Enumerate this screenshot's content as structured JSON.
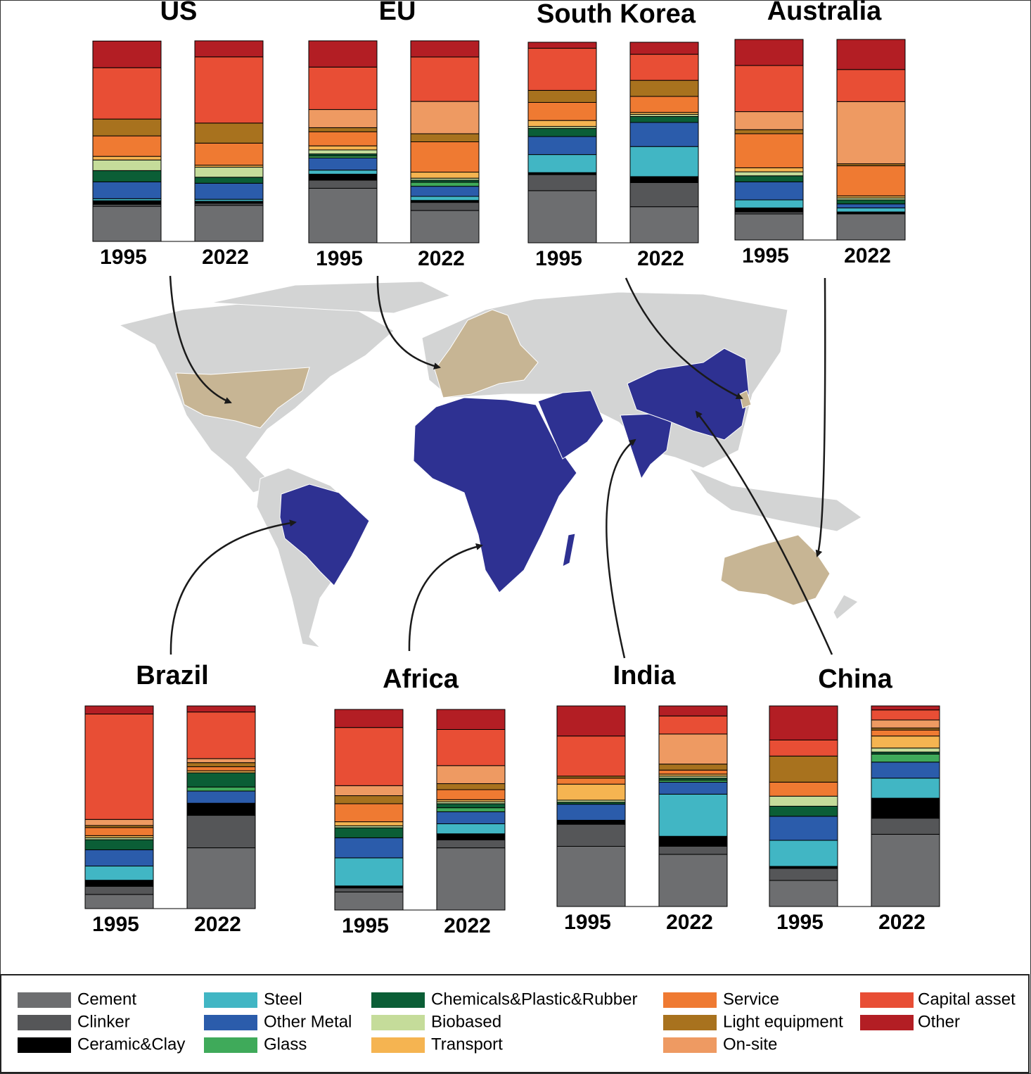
{
  "chart_data": [
    {
      "type": "bar",
      "stacked": true,
      "title": "US",
      "categories": [
        "1995",
        "2022"
      ],
      "ylim": [
        0,
        100
      ],
      "series": [
        {
          "values": [
            17.5,
            18
          ]
        },
        {
          "values": [
            1,
            1
          ]
        },
        {
          "values": [
            1.8,
            1
          ]
        },
        {
          "values": [
            1,
            1
          ]
        },
        {
          "values": [
            8.4,
            8
          ]
        },
        {
          "values": [
            0,
            0
          ]
        },
        {
          "values": [
            5.6,
            3
          ]
        },
        {
          "values": [
            5.3,
            5
          ]
        },
        {
          "values": [
            1.8,
            1
          ]
        },
        {
          "values": [
            10.2,
            11
          ]
        },
        {
          "values": [
            8.4,
            10
          ]
        },
        {
          "values": [
            0,
            0
          ]
        },
        {
          "values": [
            25.6,
            33
          ]
        },
        {
          "values": [
            13.3,
            8
          ]
        }
      ]
    },
    {
      "type": "bar",
      "stacked": true,
      "title": "EU",
      "categories": [
        "1995",
        "2022"
      ],
      "ylim": [
        0,
        100
      ],
      "series": [
        {
          "values": [
            27,
            16
          ]
        },
        {
          "values": [
            4,
            4
          ]
        },
        {
          "values": [
            3,
            1
          ]
        },
        {
          "values": [
            2,
            2
          ]
        },
        {
          "values": [
            6,
            5
          ]
        },
        {
          "values": [
            1,
            2
          ]
        },
        {
          "values": [
            1,
            1
          ]
        },
        {
          "values": [
            2,
            1
          ]
        },
        {
          "values": [
            2,
            3
          ]
        },
        {
          "values": [
            7,
            15
          ]
        },
        {
          "values": [
            2,
            4
          ]
        },
        {
          "values": [
            9,
            16
          ]
        },
        {
          "values": [
            21,
            22
          ]
        },
        {
          "values": [
            13,
            8
          ]
        }
      ]
    },
    {
      "type": "bar",
      "stacked": true,
      "title": "South Korea",
      "categories": [
        "1995",
        "2022"
      ],
      "ylim": [
        0,
        100
      ],
      "series": [
        {
          "values": [
            26,
            18
          ]
        },
        {
          "values": [
            8,
            12
          ]
        },
        {
          "values": [
            1,
            3
          ]
        },
        {
          "values": [
            9,
            15
          ]
        },
        {
          "values": [
            9,
            12
          ]
        },
        {
          "values": [
            0,
            0
          ]
        },
        {
          "values": [
            4,
            3
          ]
        },
        {
          "values": [
            1,
            1
          ]
        },
        {
          "values": [
            3,
            1
          ]
        },
        {
          "values": [
            9,
            8
          ]
        },
        {
          "values": [
            6,
            8
          ]
        },
        {
          "values": [
            0,
            0
          ]
        },
        {
          "values": [
            21,
            13
          ]
        },
        {
          "values": [
            3,
            6
          ]
        }
      ]
    },
    {
      "type": "bar",
      "stacked": true,
      "title": "Australia",
      "categories": [
        "1995",
        "2022"
      ],
      "ylim": [
        0,
        100
      ],
      "series": [
        {
          "values": [
            13,
            13
          ]
        },
        {
          "values": [
            1,
            0
          ]
        },
        {
          "values": [
            2,
            1
          ]
        },
        {
          "values": [
            4,
            2
          ]
        },
        {
          "values": [
            9,
            2
          ]
        },
        {
          "values": [
            0,
            0
          ]
        },
        {
          "values": [
            3,
            2
          ]
        },
        {
          "values": [
            2,
            1
          ]
        },
        {
          "values": [
            2,
            1
          ]
        },
        {
          "values": [
            17,
            15
          ]
        },
        {
          "values": [
            2,
            1
          ]
        },
        {
          "values": [
            9,
            31
          ]
        },
        {
          "values": [
            23,
            16
          ]
        },
        {
          "values": [
            13,
            15
          ]
        }
      ]
    },
    {
      "type": "bar",
      "stacked": true,
      "title": "Brazil",
      "categories": [
        "1995",
        "2022"
      ],
      "ylim": [
        0,
        100
      ],
      "series": [
        {
          "values": [
            7,
            30
          ]
        },
        {
          "values": [
            4,
            16
          ]
        },
        {
          "values": [
            3,
            6
          ]
        },
        {
          "values": [
            7,
            0
          ]
        },
        {
          "values": [
            8,
            6
          ]
        },
        {
          "values": [
            0,
            2
          ]
        },
        {
          "values": [
            5,
            7
          ]
        },
        {
          "values": [
            1,
            0
          ]
        },
        {
          "values": [
            1,
            1
          ]
        },
        {
          "values": [
            4,
            2
          ]
        },
        {
          "values": [
            1,
            2
          ]
        },
        {
          "values": [
            3,
            2
          ]
        },
        {
          "values": [
            52,
            23
          ]
        },
        {
          "values": [
            4,
            3
          ]
        }
      ]
    },
    {
      "type": "bar",
      "stacked": true,
      "title": "Africa",
      "categories": [
        "1995",
        "2022"
      ],
      "ylim": [
        0,
        100
      ],
      "series": [
        {
          "values": [
            9,
            31
          ]
        },
        {
          "values": [
            2,
            4
          ]
        },
        {
          "values": [
            1,
            3
          ]
        },
        {
          "values": [
            14,
            5
          ]
        },
        {
          "values": [
            10,
            6
          ]
        },
        {
          "values": [
            0,
            2
          ]
        },
        {
          "values": [
            5,
            2
          ]
        },
        {
          "values": [
            1,
            1
          ]
        },
        {
          "values": [
            2,
            1
          ]
        },
        {
          "values": [
            9,
            5
          ]
        },
        {
          "values": [
            4,
            3
          ]
        },
        {
          "values": [
            5,
            9
          ]
        },
        {
          "values": [
            29,
            18
          ]
        },
        {
          "values": [
            9,
            10
          ]
        }
      ]
    },
    {
      "type": "bar",
      "stacked": true,
      "title": "India",
      "categories": [
        "1995",
        "2022"
      ],
      "ylim": [
        0,
        100
      ],
      "series": [
        {
          "values": [
            30,
            26
          ]
        },
        {
          "values": [
            11,
            4
          ]
        },
        {
          "values": [
            2,
            5
          ]
        },
        {
          "values": [
            0,
            21
          ]
        },
        {
          "values": [
            8,
            6
          ]
        },
        {
          "values": [
            0,
            1
          ]
        },
        {
          "values": [
            1,
            1
          ]
        },
        {
          "values": [
            1,
            1
          ]
        },
        {
          "values": [
            8,
            1
          ]
        },
        {
          "values": [
            3,
            2
          ]
        },
        {
          "values": [
            1,
            3
          ]
        },
        {
          "values": [
            0,
            15
          ]
        },
        {
          "values": [
            20,
            9
          ]
        },
        {
          "values": [
            15,
            5
          ]
        }
      ]
    },
    {
      "type": "bar",
      "stacked": true,
      "title": "China",
      "categories": [
        "1995",
        "2022"
      ],
      "ylim": [
        0,
        100
      ],
      "series": [
        {
          "values": [
            13,
            36
          ]
        },
        {
          "values": [
            6,
            8
          ]
        },
        {
          "values": [
            1,
            10
          ]
        },
        {
          "values": [
            13,
            10
          ]
        },
        {
          "values": [
            12,
            8
          ]
        },
        {
          "values": [
            0,
            4
          ]
        },
        {
          "values": [
            5,
            1
          ]
        },
        {
          "values": [
            5,
            2
          ]
        },
        {
          "values": [
            0,
            6
          ]
        },
        {
          "values": [
            7,
            3
          ]
        },
        {
          "values": [
            13,
            1
          ]
        },
        {
          "values": [
            0,
            4
          ]
        },
        {
          "values": [
            8,
            5
          ]
        },
        {
          "values": [
            17,
            2
          ]
        }
      ]
    }
  ],
  "legend": [
    {
      "name": "Cement",
      "color": "#6d6e70"
    },
    {
      "name": "Clinker",
      "color": "#555658"
    },
    {
      "name": "Ceramic&Clay",
      "color": "#000000"
    },
    {
      "name": "Steel",
      "color": "#41b6c4"
    },
    {
      "name": "Other Metal",
      "color": "#2b5cab"
    },
    {
      "name": "Glass",
      "color": "#3faa5a"
    },
    {
      "name": "Chemicals&Plastic&Rubber",
      "color": "#0b5e36"
    },
    {
      "name": "Biobased",
      "color": "#c5dc9a"
    },
    {
      "name": "Transport",
      "color": "#f5b451"
    },
    {
      "name": "Service",
      "color": "#ef7a32"
    },
    {
      "name": "Light equipment",
      "color": "#a8721e"
    },
    {
      "name": "On-site",
      "color": "#ee9a62"
    },
    {
      "name": "Capital asset",
      "color": "#e84e35"
    },
    {
      "name": "Other",
      "color": "#b31e24"
    }
  ]
}
